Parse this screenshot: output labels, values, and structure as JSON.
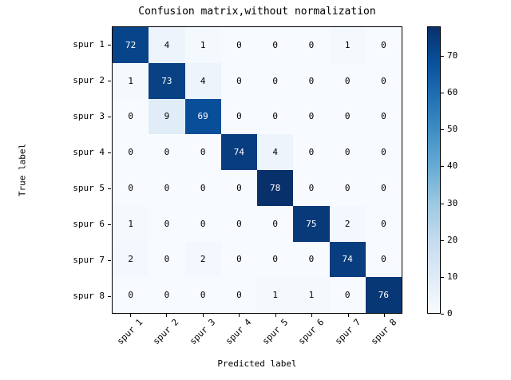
{
  "chart_data": {
    "type": "heatmap",
    "title": "Confusion matrix,without normalization",
    "xlabel": "Predicted label",
    "ylabel": "True label",
    "x_tick_labels": [
      "spur 1",
      "spur 2",
      "spur 3",
      "spur 4",
      "spur 5",
      "spur 6",
      "spur 7",
      "spur 8"
    ],
    "y_tick_labels": [
      "spur 1",
      "spur 2",
      "spur 3",
      "spur 4",
      "spur 5",
      "spur 6",
      "spur 7",
      "spur 8"
    ],
    "matrix": [
      [
        72,
        4,
        1,
        0,
        0,
        0,
        1,
        0
      ],
      [
        1,
        73,
        4,
        0,
        0,
        0,
        0,
        0
      ],
      [
        0,
        9,
        69,
        0,
        0,
        0,
        0,
        0
      ],
      [
        0,
        0,
        0,
        74,
        4,
        0,
        0,
        0
      ],
      [
        0,
        0,
        0,
        0,
        78,
        0,
        0,
        0
      ],
      [
        1,
        0,
        0,
        0,
        0,
        75,
        2,
        0
      ],
      [
        2,
        0,
        2,
        0,
        0,
        0,
        74,
        0
      ],
      [
        0,
        0,
        0,
        0,
        1,
        1,
        0,
        76
      ]
    ],
    "vmin": 0,
    "vmax": 78,
    "colormap": "Blues",
    "cmap_anchors": [
      "#f7fbff",
      "#deebf7",
      "#c6dbef",
      "#9ecae1",
      "#6baed6",
      "#4292c6",
      "#2171b5",
      "#08519c",
      "#08306b"
    ],
    "colorbar_ticks": [
      0,
      10,
      20,
      30,
      40,
      50,
      60,
      70
    ],
    "colorbar_position": "right",
    "grid": false,
    "colors": {
      "background": "#ffffff",
      "frame": "#000000",
      "cell_text_light": "#ffffff",
      "cell_text_dark": "#000000"
    }
  }
}
